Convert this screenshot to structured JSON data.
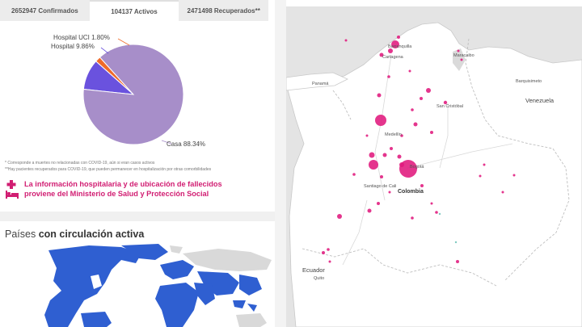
{
  "tabs": [
    {
      "label": "2652947 Confirmados",
      "active": false
    },
    {
      "label": "104137 Activos",
      "active": true
    },
    {
      "label": "2471498 Recuperados**",
      "active": false
    }
  ],
  "chart_data": {
    "type": "pie",
    "slices": [
      {
        "label": "Casa 88.34%",
        "value": 88.34,
        "color": "#a78ec9"
      },
      {
        "label": "Hospital 9.86%",
        "value": 9.86,
        "color": "#6a52de"
      },
      {
        "label": "Hospital UCI 1.80%",
        "value": 1.8,
        "color": "#ef6a2a"
      }
    ]
  },
  "footnotes": [
    "* Corresponde a muertes no relacionadas con COVID-19, aún si eran casos activos",
    "**Hay pacientes recuperados para COVID-19, que pueden permanecer en hospitalización por otras comorbilidades"
  ],
  "info": {
    "line1": "La información hospitalaria y de ubicación de fallecidos",
    "line2": "proviene del Ministerio de Salud y Protección Social",
    "icon": "hospital-bed-icon",
    "color": "#d11d72"
  },
  "countries": {
    "prefix": "Países",
    "bold": "con circulación activa"
  },
  "map": {
    "labels": {
      "barranquilla": "Barranquilla",
      "cartagena": "Cartagena",
      "maracaibo": "Maracaibo",
      "panama": "Panamá",
      "barquisimeto": "Barquisimeto",
      "san_cristobal": "San Cristóbal",
      "venezuela": "Venezuela",
      "medellin": "Medellín",
      "bogota": "Bogotá",
      "santiago_de_cali": "Santiago de Cali",
      "colombia": "Colombia",
      "ecuador": "Ecuador",
      "quito": "Quito"
    },
    "bubble_color": "#e0197d"
  }
}
